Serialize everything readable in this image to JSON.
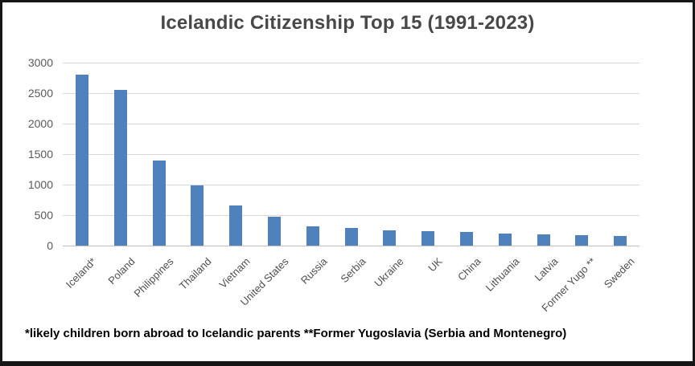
{
  "title": "Icelandic Citizenship Top 15 (1991-2023)",
  "footnote": "*likely children born abroad to Icelandic parents **Former Yugoslavia (Serbia and Montenegro)",
  "colors": {
    "bar": "#4f81bd",
    "gridline": "#d9d9d9",
    "axis_line": "#bfbfbf",
    "tick_text": "#595959",
    "title_text": "#484848",
    "footnote_text": "#000000",
    "frame_border": "#161616",
    "background": "#ffffff"
  },
  "chart_data": {
    "type": "bar",
    "title": "Icelandic Citizenship Top 15 (1991-2023)",
    "categories": [
      "Iceland*",
      "Poland",
      "Philippines",
      "Thailand",
      "Vietnam",
      "United States",
      "Russia",
      "Serbia",
      "Ukraine",
      "UK",
      "China",
      "Lithuania",
      "Latvia",
      "Former Yugo **",
      "Sweden"
    ],
    "values": [
      2800,
      2550,
      1400,
      990,
      660,
      470,
      310,
      295,
      250,
      232,
      228,
      192,
      188,
      172,
      152
    ],
    "xlabel": "",
    "ylabel": "",
    "ylim": [
      0,
      3000
    ],
    "yticks": [
      0,
      500,
      1000,
      1500,
      2000,
      2500,
      3000
    ],
    "grid": true,
    "legend": false,
    "x_label_rotation_deg": 45
  }
}
